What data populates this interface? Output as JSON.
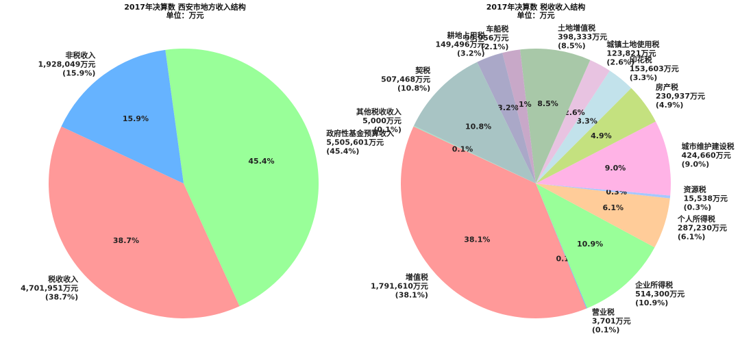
{
  "chart_data": [
    {
      "type": "pie",
      "title": "2017年决算数 西安市地方收入结构",
      "subtitle": "单位：万元",
      "slices": [
        {
          "label": "税收收入",
          "value": 4701951,
          "value_text": "4,701,951万元",
          "percent": "38.7%",
          "color": "#ff9999"
        },
        {
          "label": "政府性基金预算收入",
          "value": 5505601,
          "value_text": "5,505,601万元",
          "percent": "45.4%",
          "color": "#99ff99"
        },
        {
          "label": "非税收入",
          "value": 1928049,
          "value_text": "1,928,049万元",
          "percent": "15.9%",
          "color": "#66b3ff"
        }
      ]
    },
    {
      "type": "pie",
      "title": "2017年决算数 税收收入结构",
      "subtitle": "单位：万元",
      "slices": [
        {
          "label": "增值税",
          "value": 1791610,
          "value_text": "1,791,610万元",
          "percent": "38.1%",
          "color": "#ff9999"
        },
        {
          "label": "营业税",
          "value": 3701,
          "value_text": "3,701万元",
          "percent": "0.1%",
          "color": "#66b3ff"
        },
        {
          "label": "企业所得税",
          "value": 514300,
          "value_text": "514,300万元",
          "percent": "10.9%",
          "color": "#99ff99"
        },
        {
          "label": "个人所得税",
          "value": 287230,
          "value_text": "287,230万元",
          "percent": "6.1%",
          "color": "#ffcc99"
        },
        {
          "label": "资源税",
          "value": 15538,
          "value_text": "15,538万元",
          "percent": "0.3%",
          "color": "#a6c8ff"
        },
        {
          "label": "城市维护建设税",
          "value": 424660,
          "value_text": "424,660万元",
          "percent": "9.0%",
          "color": "#ffb3e6"
        },
        {
          "label": "房产税",
          "value": 230937,
          "value_text": "230,937万元",
          "percent": "4.9%",
          "color": "#c4e17f"
        },
        {
          "label": "印花税",
          "value": 153603,
          "value_text": "153,603万元",
          "percent": "3.3%",
          "color": "#c2e2eb"
        },
        {
          "label": "城镇土地使用税",
          "value": 123821,
          "value_text": "123,821万元",
          "percent": "2.6%",
          "color": "#e8c3e1"
        },
        {
          "label": "土地增值税",
          "value": 398333,
          "value_text": "398,333万元",
          "percent": "8.5%",
          "color": "#a8c8a8"
        },
        {
          "label": "车船税",
          "value": 99956,
          "value_text": "99,956万元",
          "percent": "2.1%",
          "color": "#c8a8c8"
        },
        {
          "label": "耕地占用税",
          "value": 149496,
          "value_text": "149,496万元",
          "percent": "3.2%",
          "color": "#aaa8c8"
        },
        {
          "label": "契税",
          "value": 507468,
          "value_text": "507,468万元",
          "percent": "10.8%",
          "color": "#a8c4c4"
        },
        {
          "label": "其他税收收入",
          "value": 5000,
          "value_text": "5,000万元",
          "percent": "0.1%",
          "color": "#a8e0c8"
        }
      ]
    }
  ]
}
